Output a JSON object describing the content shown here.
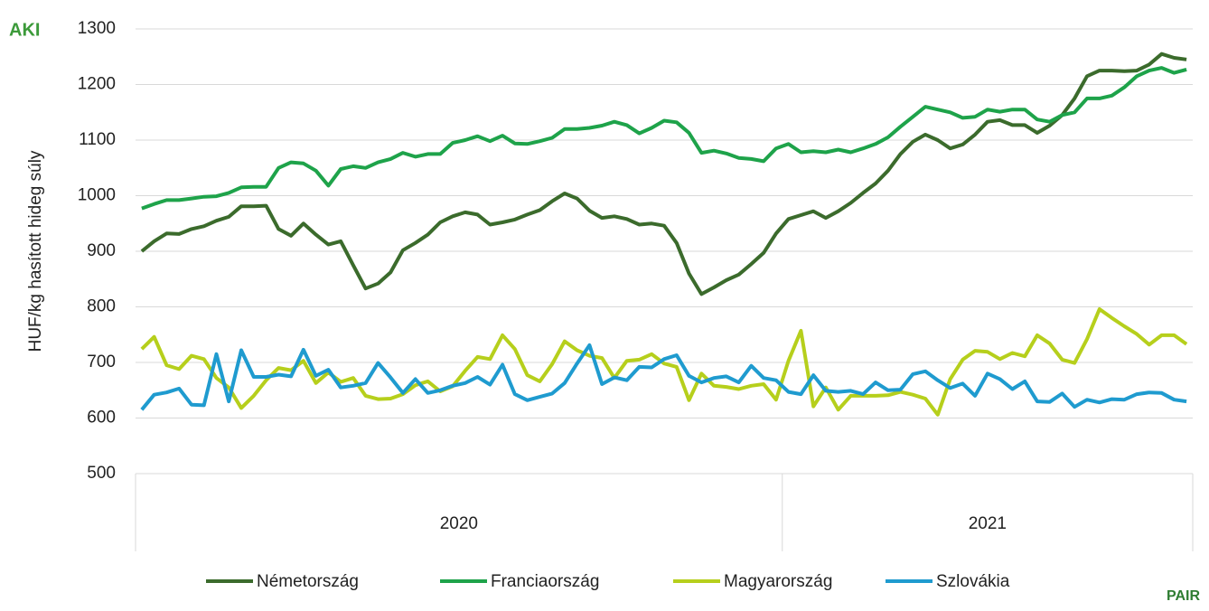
{
  "logo_left": "AKI",
  "logo_right": "PAIR",
  "chart_data": {
    "type": "line",
    "y_label": "HUF/kg hasított hideg súly",
    "ylim": [
      500,
      1300
    ],
    "yticks": [
      500,
      600,
      700,
      800,
      900,
      1000,
      1100,
      1200,
      1300
    ],
    "grid": true,
    "groups": [
      {
        "label": "2020",
        "count": 52
      },
      {
        "label": "2021",
        "count": 33
      }
    ],
    "categories": [
      null,
      null,
      null,
      null,
      null,
      null,
      null,
      null,
      null,
      null,
      null,
      null,
      null,
      null,
      null,
      null,
      null,
      null,
      null,
      null,
      null,
      null,
      null,
      null,
      null,
      null,
      null,
      null,
      null,
      null,
      null,
      null,
      null,
      null,
      null,
      null,
      null,
      null,
      null,
      null,
      null,
      null,
      null,
      null,
      null,
      null,
      null,
      null,
      null,
      null,
      null,
      null,
      null,
      null,
      null,
      null,
      null,
      null,
      null,
      null,
      null,
      null,
      null,
      null,
      null,
      null,
      null,
      null,
      null,
      null,
      null,
      null,
      null,
      null,
      null,
      null,
      null,
      null,
      null,
      null,
      null,
      null,
      null,
      null,
      null
    ],
    "legend": "bottom",
    "series": [
      {
        "name": "Németország",
        "color": "#3b6b2c",
        "values": [
          900,
          918,
          932,
          931,
          940,
          945,
          955,
          962,
          981,
          981,
          982,
          940,
          928,
          950,
          930,
          912,
          918,
          875,
          833,
          842,
          862,
          902,
          915,
          930,
          952,
          963,
          970,
          966,
          948,
          952,
          957,
          966,
          974,
          990,
          1004,
          995,
          973,
          960,
          963,
          958,
          948,
          950,
          946,
          915,
          860,
          823,
          835,
          848,
          858,
          877,
          897,
          932,
          958,
          965,
          972,
          960,
          972,
          987,
          1005,
          1022,
          1045,
          1075,
          1097,
          1110,
          1100,
          1085,
          1092,
          1110,
          1133,
          1136,
          1127,
          1127,
          1113,
          1126,
          1145,
          1175,
          1215,
          1225,
          1225,
          1224,
          1225,
          1236,
          1255,
          1248,
          1245
        ]
      },
      {
        "name": "Franciaország",
        "color": "#1ea34a",
        "values": [
          977,
          985,
          992,
          992,
          995,
          998,
          999,
          1005,
          1015,
          1016,
          1016,
          1050,
          1060,
          1058,
          1045,
          1018,
          1048,
          1053,
          1050,
          1060,
          1066,
          1077,
          1070,
          1075,
          1075,
          1095,
          1100,
          1107,
          1098,
          1108,
          1094,
          1093,
          1098,
          1104,
          1120,
          1120,
          1122,
          1126,
          1133,
          1127,
          1112,
          1122,
          1135,
          1132,
          1113,
          1077,
          1081,
          1076,
          1068,
          1066,
          1062,
          1085,
          1093,
          1078,
          1080,
          1078,
          1083,
          1078,
          1085,
          1093,
          1105,
          1124,
          1142,
          1160,
          1155,
          1150,
          1140,
          1142,
          1155,
          1151,
          1155,
          1155,
          1137,
          1133,
          1145,
          1150,
          1175,
          1175,
          1180,
          1195,
          1215,
          1225,
          1230,
          1221,
          1227
        ]
      },
      {
        "name": "Magyarország",
        "color": "#b6cf1c",
        "values": [
          724,
          746,
          695,
          688,
          712,
          706,
          672,
          655,
          618,
          640,
          668,
          690,
          686,
          703,
          663,
          682,
          665,
          672,
          640,
          634,
          635,
          643,
          659,
          666,
          648,
          657,
          685,
          710,
          706,
          749,
          724,
          677,
          666,
          697,
          738,
          722,
          712,
          708,
          672,
          703,
          705,
          715,
          698,
          692,
          632,
          680,
          658,
          656,
          652,
          658,
          661,
          633,
          703,
          757,
          621,
          655,
          615,
          640,
          640,
          640,
          641,
          647,
          642,
          635,
          606,
          670,
          705,
          721,
          719,
          706,
          717,
          711,
          749,
          734,
          705,
          699,
          742,
          796,
          780,
          765,
          751,
          732,
          749,
          749,
          733
        ]
      },
      {
        "name": "Szlovákia",
        "color": "#1f9bcf",
        "values": [
          615,
          642,
          646,
          653,
          624,
          623,
          715,
          630,
          722,
          674,
          674,
          678,
          675,
          723,
          676,
          687,
          655,
          658,
          663,
          699,
          673,
          645,
          670,
          645,
          650,
          658,
          663,
          674,
          660,
          696,
          643,
          632,
          638,
          644,
          663,
          698,
          731,
          661,
          673,
          668,
          692,
          691,
          706,
          713,
          676,
          664,
          672,
          675,
          664,
          694,
          672,
          668,
          647,
          643,
          677,
          649,
          647,
          649,
          643,
          664,
          650,
          651,
          679,
          684,
          668,
          654,
          662,
          640,
          680,
          670,
          652,
          666,
          630,
          629,
          644,
          620,
          633,
          628,
          634,
          633,
          643,
          646,
          645,
          633,
          630
        ]
      }
    ]
  }
}
